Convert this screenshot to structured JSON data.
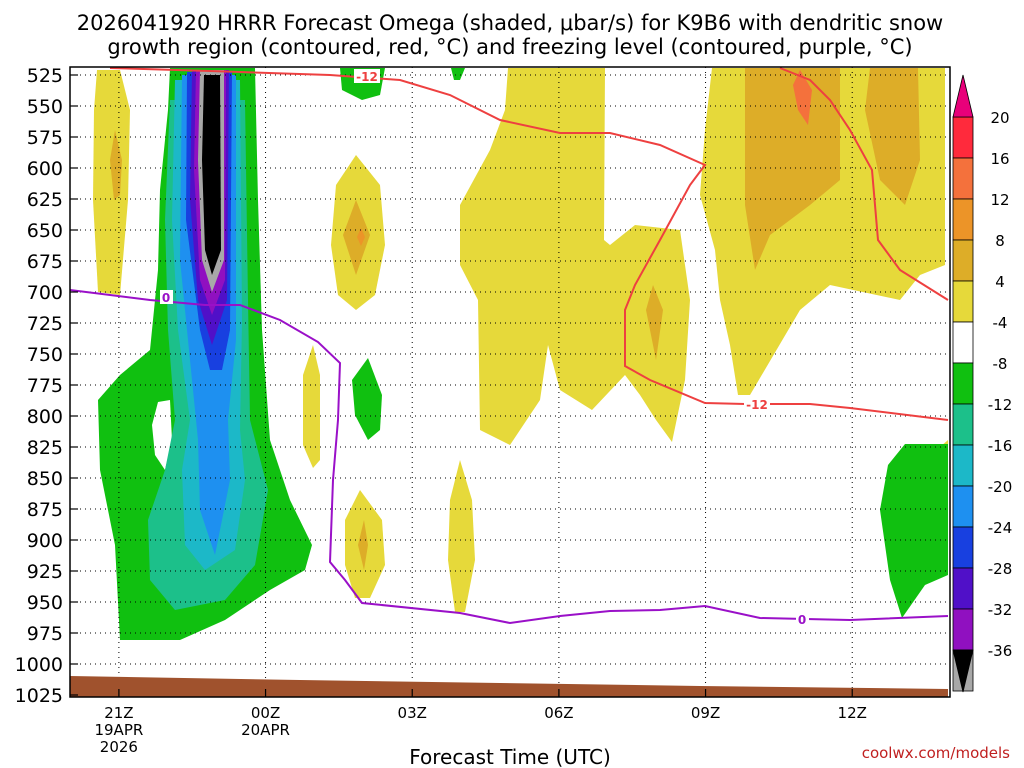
{
  "chart_data": {
    "type": "contour",
    "title_line1": "2026041920 HRRR Forecast Omega (shaded, μbar/s) for K9B6 with dendritic snow",
    "title_line2": "growth region (contoured, red, °C) and freezing level (contoured, purple, °C)",
    "xlabel": "Forecast Time (UTC)",
    "credit": "coolwx.com/models",
    "y_levels": [
      "525",
      "550",
      "575",
      "600",
      "625",
      "650",
      "675",
      "700",
      "725",
      "750",
      "775",
      "800",
      "825",
      "850",
      "875",
      "900",
      "925",
      "950",
      "975",
      "1000",
      "1025"
    ],
    "x_ticks": [
      {
        "hour": 0,
        "l1": "21Z",
        "l2": "19APR",
        "l3": "2026"
      },
      {
        "hour": 3,
        "l1": "00Z",
        "l2": "20APR",
        "l3": ""
      },
      {
        "hour": 6,
        "l1": "03Z",
        "l2": "",
        "l3": ""
      },
      {
        "hour": 9,
        "l1": "06Z",
        "l2": "",
        "l3": ""
      },
      {
        "hour": 12,
        "l1": "09Z",
        "l2": "",
        "l3": ""
      },
      {
        "hour": 15,
        "l1": "12Z",
        "l2": "",
        "l3": ""
      }
    ],
    "x_range_hours": [
      -1,
      17
    ],
    "colorbar": {
      "labels": [
        "20",
        "16",
        "12",
        "8",
        "4",
        "-4",
        "-8",
        "-12",
        "-16",
        "-20",
        "-24",
        "-28",
        "-32",
        "-36"
      ],
      "colors": [
        "#ff2a3c",
        "#f4713c",
        "#ec9428",
        "#ddad28",
        "#e6d93a",
        "#ffffff",
        "#10c010",
        "#1cc08a",
        "#1cb8c8",
        "#1e90f0",
        "#1840e0",
        "#5010c8",
        "#9010c0",
        "#a8a8a8"
      ],
      "top_color": "#e8007a",
      "bottom_color": "#000000"
    },
    "contours": [
      {
        "name": "dendritic -12 C",
        "value": -12,
        "label": "-12",
        "color": "#ee4040"
      },
      {
        "name": "freezing level 0 C",
        "value": 0,
        "label": "0",
        "color": "#9a10c8"
      }
    ],
    "terrain_color": "#a0522d"
  }
}
